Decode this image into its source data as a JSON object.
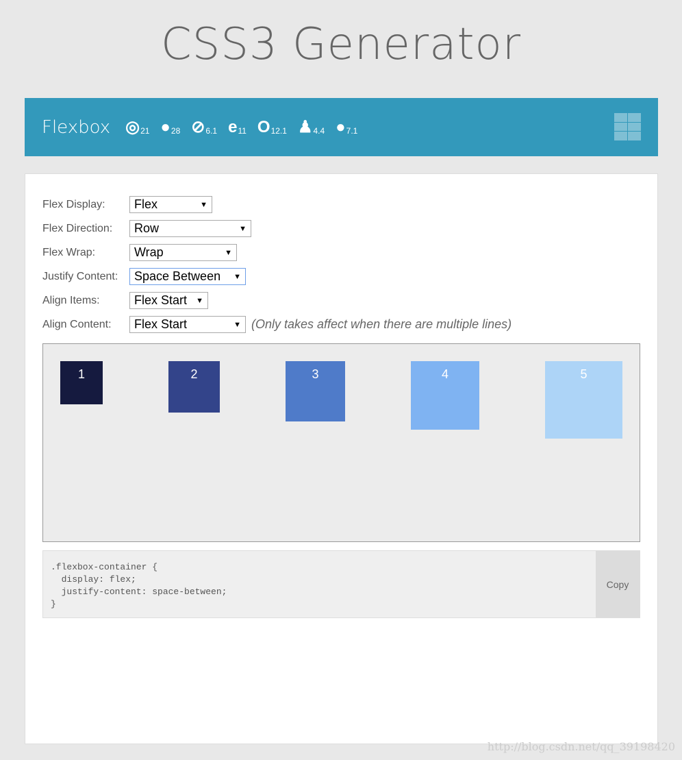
{
  "title": "CSS3 Generator",
  "header": {
    "name": "Flexbox",
    "browsers": [
      {
        "icon": "chrome-icon",
        "glyph": "◎",
        "version": "21"
      },
      {
        "icon": "firefox-icon",
        "glyph": "●",
        "version": "28"
      },
      {
        "icon": "safari-icon",
        "glyph": "⊘",
        "version": "6.1"
      },
      {
        "icon": "ie-icon",
        "glyph": "e",
        "version": "11"
      },
      {
        "icon": "opera-icon",
        "glyph": "O",
        "version": "12.1"
      },
      {
        "icon": "android-icon",
        "glyph": "♟",
        "version": "4.4"
      },
      {
        "icon": "apple-icon",
        "glyph": "●",
        "version": "7.1"
      }
    ],
    "color": "#3399bb"
  },
  "form": [
    {
      "label": "Flex Display:",
      "value": "Flex"
    },
    {
      "label": "Flex Direction:",
      "value": "Row"
    },
    {
      "label": "Flex Wrap:",
      "value": "Wrap"
    },
    {
      "label": "Justify Content:",
      "value": "Space Between"
    },
    {
      "label": "Align Items:",
      "value": "Flex Start"
    },
    {
      "label": "Align Content:",
      "value": "Flex Start",
      "note": "(Only takes affect when there are multiple lines)"
    }
  ],
  "boxes": [
    {
      "label": "1",
      "color": "#151a3f"
    },
    {
      "label": "2",
      "color": "#33448a"
    },
    {
      "label": "3",
      "color": "#4f7bc9"
    },
    {
      "label": "4",
      "color": "#7fb3f2"
    },
    {
      "label": "5",
      "color": "#add4f7"
    }
  ],
  "code": ".flexbox-container {\n  display: flex;\n  justify-content: space-between;\n}",
  "copy_label": "Copy",
  "watermark": "http://blog.csdn.net/qq_39198420"
}
